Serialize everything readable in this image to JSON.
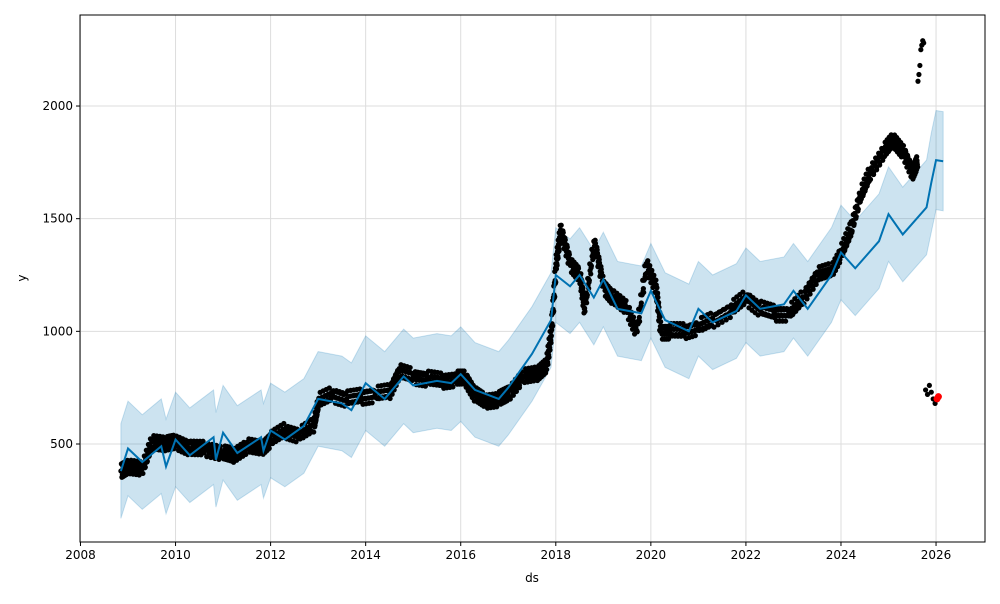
{
  "chart_data": {
    "type": "line",
    "title": "",
    "xlabel": "ds",
    "ylabel": "y",
    "xlim": [
      2007.99,
      2027.03
    ],
    "ylim": [
      65,
      2404
    ],
    "grid": true,
    "x_ticks": [
      2008,
      2010,
      2012,
      2014,
      2016,
      2018,
      2020,
      2022,
      2024,
      2026
    ],
    "x_tick_labels": [
      "2008",
      "2010",
      "2012",
      "2014",
      "2016",
      "2018",
      "2020",
      "2022",
      "2024",
      "2026"
    ],
    "y_ticks": [
      500,
      1000,
      1500,
      2000
    ],
    "y_tick_labels": [
      "500",
      "1000",
      "1500",
      "2000"
    ],
    "colors": {
      "observed": "#000000",
      "forecast": "#0072B2",
      "interval": "#0072B2",
      "highlight": "#ff0000",
      "grid": "#dddddd"
    },
    "forecast": {
      "name": "yhat",
      "x": [
        2008.85,
        2009.0,
        2009.3,
        2009.7,
        2009.8,
        2010.0,
        2010.3,
        2010.8,
        2010.85,
        2011.0,
        2011.3,
        2011.8,
        2011.85,
        2012.0,
        2012.3,
        2012.7,
        2013.0,
        2013.5,
        2013.7,
        2014.0,
        2014.4,
        2014.8,
        2015.0,
        2015.5,
        2015.8,
        2016.0,
        2016.3,
        2016.8,
        2017.0,
        2017.5,
        2017.9,
        2018.0,
        2018.3,
        2018.5,
        2018.8,
        2019.0,
        2019.3,
        2019.8,
        2020.0,
        2020.3,
        2020.8,
        2021.0,
        2021.3,
        2021.8,
        2022.0,
        2022.3,
        2022.8,
        2023.0,
        2023.3,
        2023.8,
        2024.0,
        2024.3,
        2024.8,
        2025.0,
        2025.3,
        2025.8,
        2025.9,
        2026.0,
        2026.15
      ],
      "yhat": [
        380,
        480,
        420,
        490,
        400,
        520,
        450,
        530,
        430,
        550,
        460,
        530,
        470,
        560,
        520,
        580,
        700,
        680,
        650,
        770,
        700,
        800,
        760,
        780,
        770,
        810,
        740,
        700,
        750,
        900,
        1050,
        1250,
        1200,
        1250,
        1150,
        1230,
        1100,
        1080,
        1180,
        1050,
        1000,
        1100,
        1040,
        1090,
        1160,
        1100,
        1120,
        1180,
        1100,
        1250,
        1350,
        1280,
        1400,
        1520,
        1430,
        1550,
        1660,
        1760,
        1755
      ],
      "yhat_lower": [
        170,
        270,
        210,
        280,
        190,
        310,
        240,
        320,
        220,
        340,
        250,
        320,
        260,
        350,
        310,
        370,
        490,
        470,
        440,
        560,
        490,
        590,
        550,
        570,
        560,
        600,
        530,
        490,
        540,
        690,
        840,
        1040,
        990,
        1040,
        940,
        1020,
        890,
        870,
        970,
        840,
        790,
        890,
        830,
        880,
        950,
        890,
        910,
        970,
        890,
        1040,
        1140,
        1070,
        1190,
        1310,
        1220,
        1340,
        1440,
        1540,
        1535
      ],
      "yhat_upper": [
        590,
        690,
        630,
        700,
        610,
        730,
        660,
        740,
        640,
        760,
        670,
        740,
        680,
        770,
        730,
        790,
        910,
        890,
        860,
        980,
        910,
        1010,
        970,
        990,
        980,
        1020,
        950,
        910,
        960,
        1110,
        1260,
        1460,
        1410,
        1460,
        1360,
        1440,
        1310,
        1290,
        1390,
        1260,
        1210,
        1310,
        1250,
        1300,
        1370,
        1310,
        1330,
        1390,
        1310,
        1460,
        1560,
        1490,
        1610,
        1730,
        1640,
        1760,
        1880,
        1980,
        1975
      ]
    },
    "observed": {
      "name": "y",
      "x": [
        2008.85,
        2009.0,
        2009.3,
        2009.5,
        2009.8,
        2010.0,
        2010.3,
        2010.6,
        2011.0,
        2011.2,
        2011.5,
        2011.8,
        2012.0,
        2012.3,
        2012.6,
        2012.9,
        2013.0,
        2013.3,
        2013.6,
        2013.9,
        2014.2,
        2014.5,
        2014.7,
        2015.0,
        2015.3,
        2015.6,
        2015.9,
        2016.1,
        2016.3,
        2016.5,
        2016.8,
        2017.0,
        2017.3,
        2017.6,
        2017.8,
        2017.9,
        2018.0,
        2018.1,
        2018.3,
        2018.5,
        2018.6,
        2018.8,
        2019.0,
        2019.2,
        2019.5,
        2019.7,
        2019.9,
        2020.1,
        2020.2,
        2020.4,
        2020.7,
        2021.0,
        2021.3,
        2021.7,
        2022.0,
        2022.3,
        2022.6,
        2022.9,
        2023.2,
        2023.5,
        2023.8,
        2024.0,
        2024.2,
        2024.4,
        2024.6,
        2024.9,
        2025.1,
        2025.3,
        2025.5,
        2025.6
      ],
      "y": [
        380,
        400,
        390,
        510,
        500,
        510,
        480,
        480,
        460,
        450,
        490,
        480,
        520,
        560,
        540,
        580,
        690,
        720,
        700,
        710,
        720,
        730,
        820,
        800,
        790,
        780,
        790,
        790,
        720,
        690,
        700,
        720,
        800,
        810,
        850,
        1000,
        1300,
        1450,
        1300,
        1250,
        1100,
        1400,
        1200,
        1150,
        1100,
        1000,
        1300,
        1200,
        1000,
        1000,
        1000,
        1020,
        1050,
        1100,
        1150,
        1100,
        1080,
        1080,
        1150,
        1250,
        1270,
        1350,
        1450,
        1600,
        1700,
        1800,
        1850,
        1800,
        1700,
        1750
      ]
    },
    "observed_outliers": {
      "x": [
        2025.62,
        2025.64,
        2025.66,
        2025.68,
        2025.7,
        2025.72,
        2025.74,
        2025.78,
        2025.82,
        2025.86,
        2025.9,
        2025.94,
        2025.98
      ],
      "y": [
        2110,
        2140,
        2180,
        2250,
        2270,
        2290,
        2280,
        740,
        720,
        760,
        730,
        700,
        680
      ]
    },
    "highlight": {
      "x": [
        2026.02,
        2026.05
      ],
      "y": [
        700,
        710
      ]
    }
  }
}
